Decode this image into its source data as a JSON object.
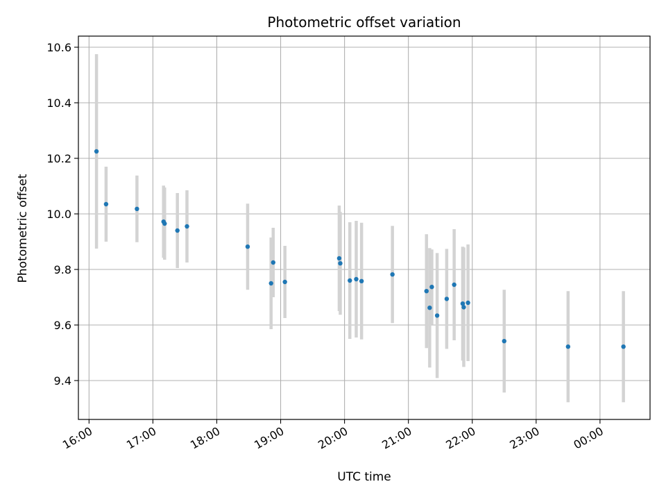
{
  "chart_data": {
    "type": "scatter",
    "title": "Photometric offset variation",
    "xlabel": "UTC time",
    "ylabel": "Photometric offset",
    "grid": true,
    "x_tick_labels": [
      "16:00",
      "17:00",
      "18:00",
      "19:00",
      "20:00",
      "21:00",
      "22:00",
      "23:00",
      "00:00"
    ],
    "y_tick_labels": [
      "9.4",
      "9.6",
      "9.8",
      "10.0",
      "10.2",
      "10.4",
      "10.6"
    ],
    "xlim": [
      "15:50",
      "00:47"
    ],
    "ylim": [
      9.26,
      10.64
    ],
    "colors": {
      "point": "#1f77b4",
      "errorbar": "#d3d3d3",
      "grid": "#b0b0b0"
    },
    "points": [
      {
        "x": "16:07",
        "y": 10.225,
        "yerr": 0.35
      },
      {
        "x": "16:16",
        "y": 10.035,
        "yerr": 0.135
      },
      {
        "x": "16:45",
        "y": 10.018,
        "yerr": 0.12
      },
      {
        "x": "17:10",
        "y": 9.972,
        "yerr": 0.13
      },
      {
        "x": "17:11",
        "y": 9.965,
        "yerr": 0.13
      },
      {
        "x": "17:23",
        "y": 9.94,
        "yerr": 0.135
      },
      {
        "x": "17:32",
        "y": 9.955,
        "yerr": 0.13
      },
      {
        "x": "18:29",
        "y": 9.882,
        "yerr": 0.155
      },
      {
        "x": "18:51",
        "y": 9.75,
        "yerr": 0.165
      },
      {
        "x": "18:53",
        "y": 9.825,
        "yerr": 0.125
      },
      {
        "x": "19:04",
        "y": 9.755,
        "yerr": 0.13
      },
      {
        "x": "19:55",
        "y": 9.84,
        "yerr": 0.19
      },
      {
        "x": "19:56",
        "y": 9.822,
        "yerr": 0.185
      },
      {
        "x": "20:05",
        "y": 9.76,
        "yerr": 0.21
      },
      {
        "x": "20:11",
        "y": 9.765,
        "yerr": 0.21
      },
      {
        "x": "20:16",
        "y": 9.758,
        "yerr": 0.21
      },
      {
        "x": "20:45",
        "y": 9.782,
        "yerr": 0.175
      },
      {
        "x": "21:17",
        "y": 9.722,
        "yerr": 0.205
      },
      {
        "x": "21:20",
        "y": 9.662,
        "yerr": 0.215
      },
      {
        "x": "21:22",
        "y": 9.737,
        "yerr": 0.135
      },
      {
        "x": "21:27",
        "y": 9.634,
        "yerr": 0.225
      },
      {
        "x": "21:36",
        "y": 9.694,
        "yerr": 0.18
      },
      {
        "x": "21:43",
        "y": 9.745,
        "yerr": 0.2
      },
      {
        "x": "21:51",
        "y": 9.677,
        "yerr": 0.205
      },
      {
        "x": "21:52",
        "y": 9.664,
        "yerr": 0.215
      },
      {
        "x": "21:56",
        "y": 9.68,
        "yerr": 0.21
      },
      {
        "x": "22:30",
        "y": 9.542,
        "yerr": 0.185
      },
      {
        "x": "23:30",
        "y": 9.522,
        "yerr": 0.2
      },
      {
        "x": "00:22",
        "y": 9.522,
        "yerr": 0.2
      }
    ]
  }
}
